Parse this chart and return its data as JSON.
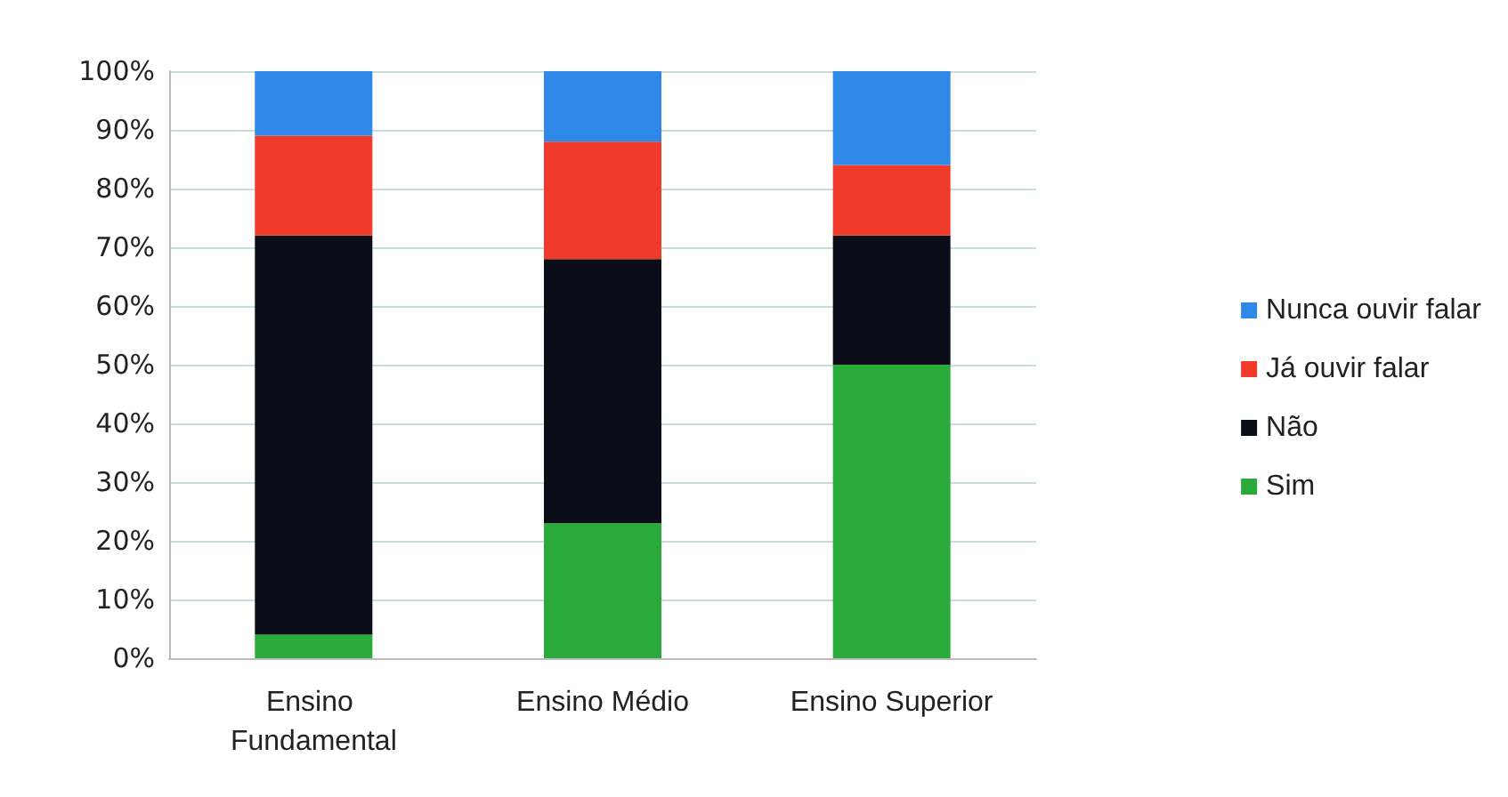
{
  "chart_data": {
    "type": "bar",
    "stacked": true,
    "categories": [
      "Ensino Fundamental",
      "Ensino Médio",
      "Ensino Superior"
    ],
    "series": [
      {
        "name": "Sim",
        "color": "#2aaa3a",
        "values": [
          4,
          23,
          50
        ]
      },
      {
        "name": "Não",
        "color": "#0b0d18",
        "values": [
          68,
          45,
          22
        ]
      },
      {
        "name": "Já ouvir falar",
        "color": "#f03a2a",
        "values": [
          17,
          20,
          12
        ]
      },
      {
        "name": "Nunca ouvir falar",
        "color": "#2f87e8",
        "values": [
          11,
          12,
          16
        ]
      }
    ],
    "ylim": [
      0,
      100
    ],
    "yticks": [
      {
        "value": 0,
        "label": "0%"
      },
      {
        "value": 10,
        "label": "10%"
      },
      {
        "value": 20,
        "label": "20%"
      },
      {
        "value": 30,
        "label": "30%"
      },
      {
        "value": 40,
        "label": "40%"
      },
      {
        "value": 50,
        "label": "50%"
      },
      {
        "value": 60,
        "label": "60%"
      },
      {
        "value": 70,
        "label": "70%"
      },
      {
        "value": 80,
        "label": "80%"
      },
      {
        "value": 90,
        "label": "90%"
      },
      {
        "value": 100,
        "label": "100%"
      }
    ],
    "grid": "y",
    "legend": "right"
  }
}
